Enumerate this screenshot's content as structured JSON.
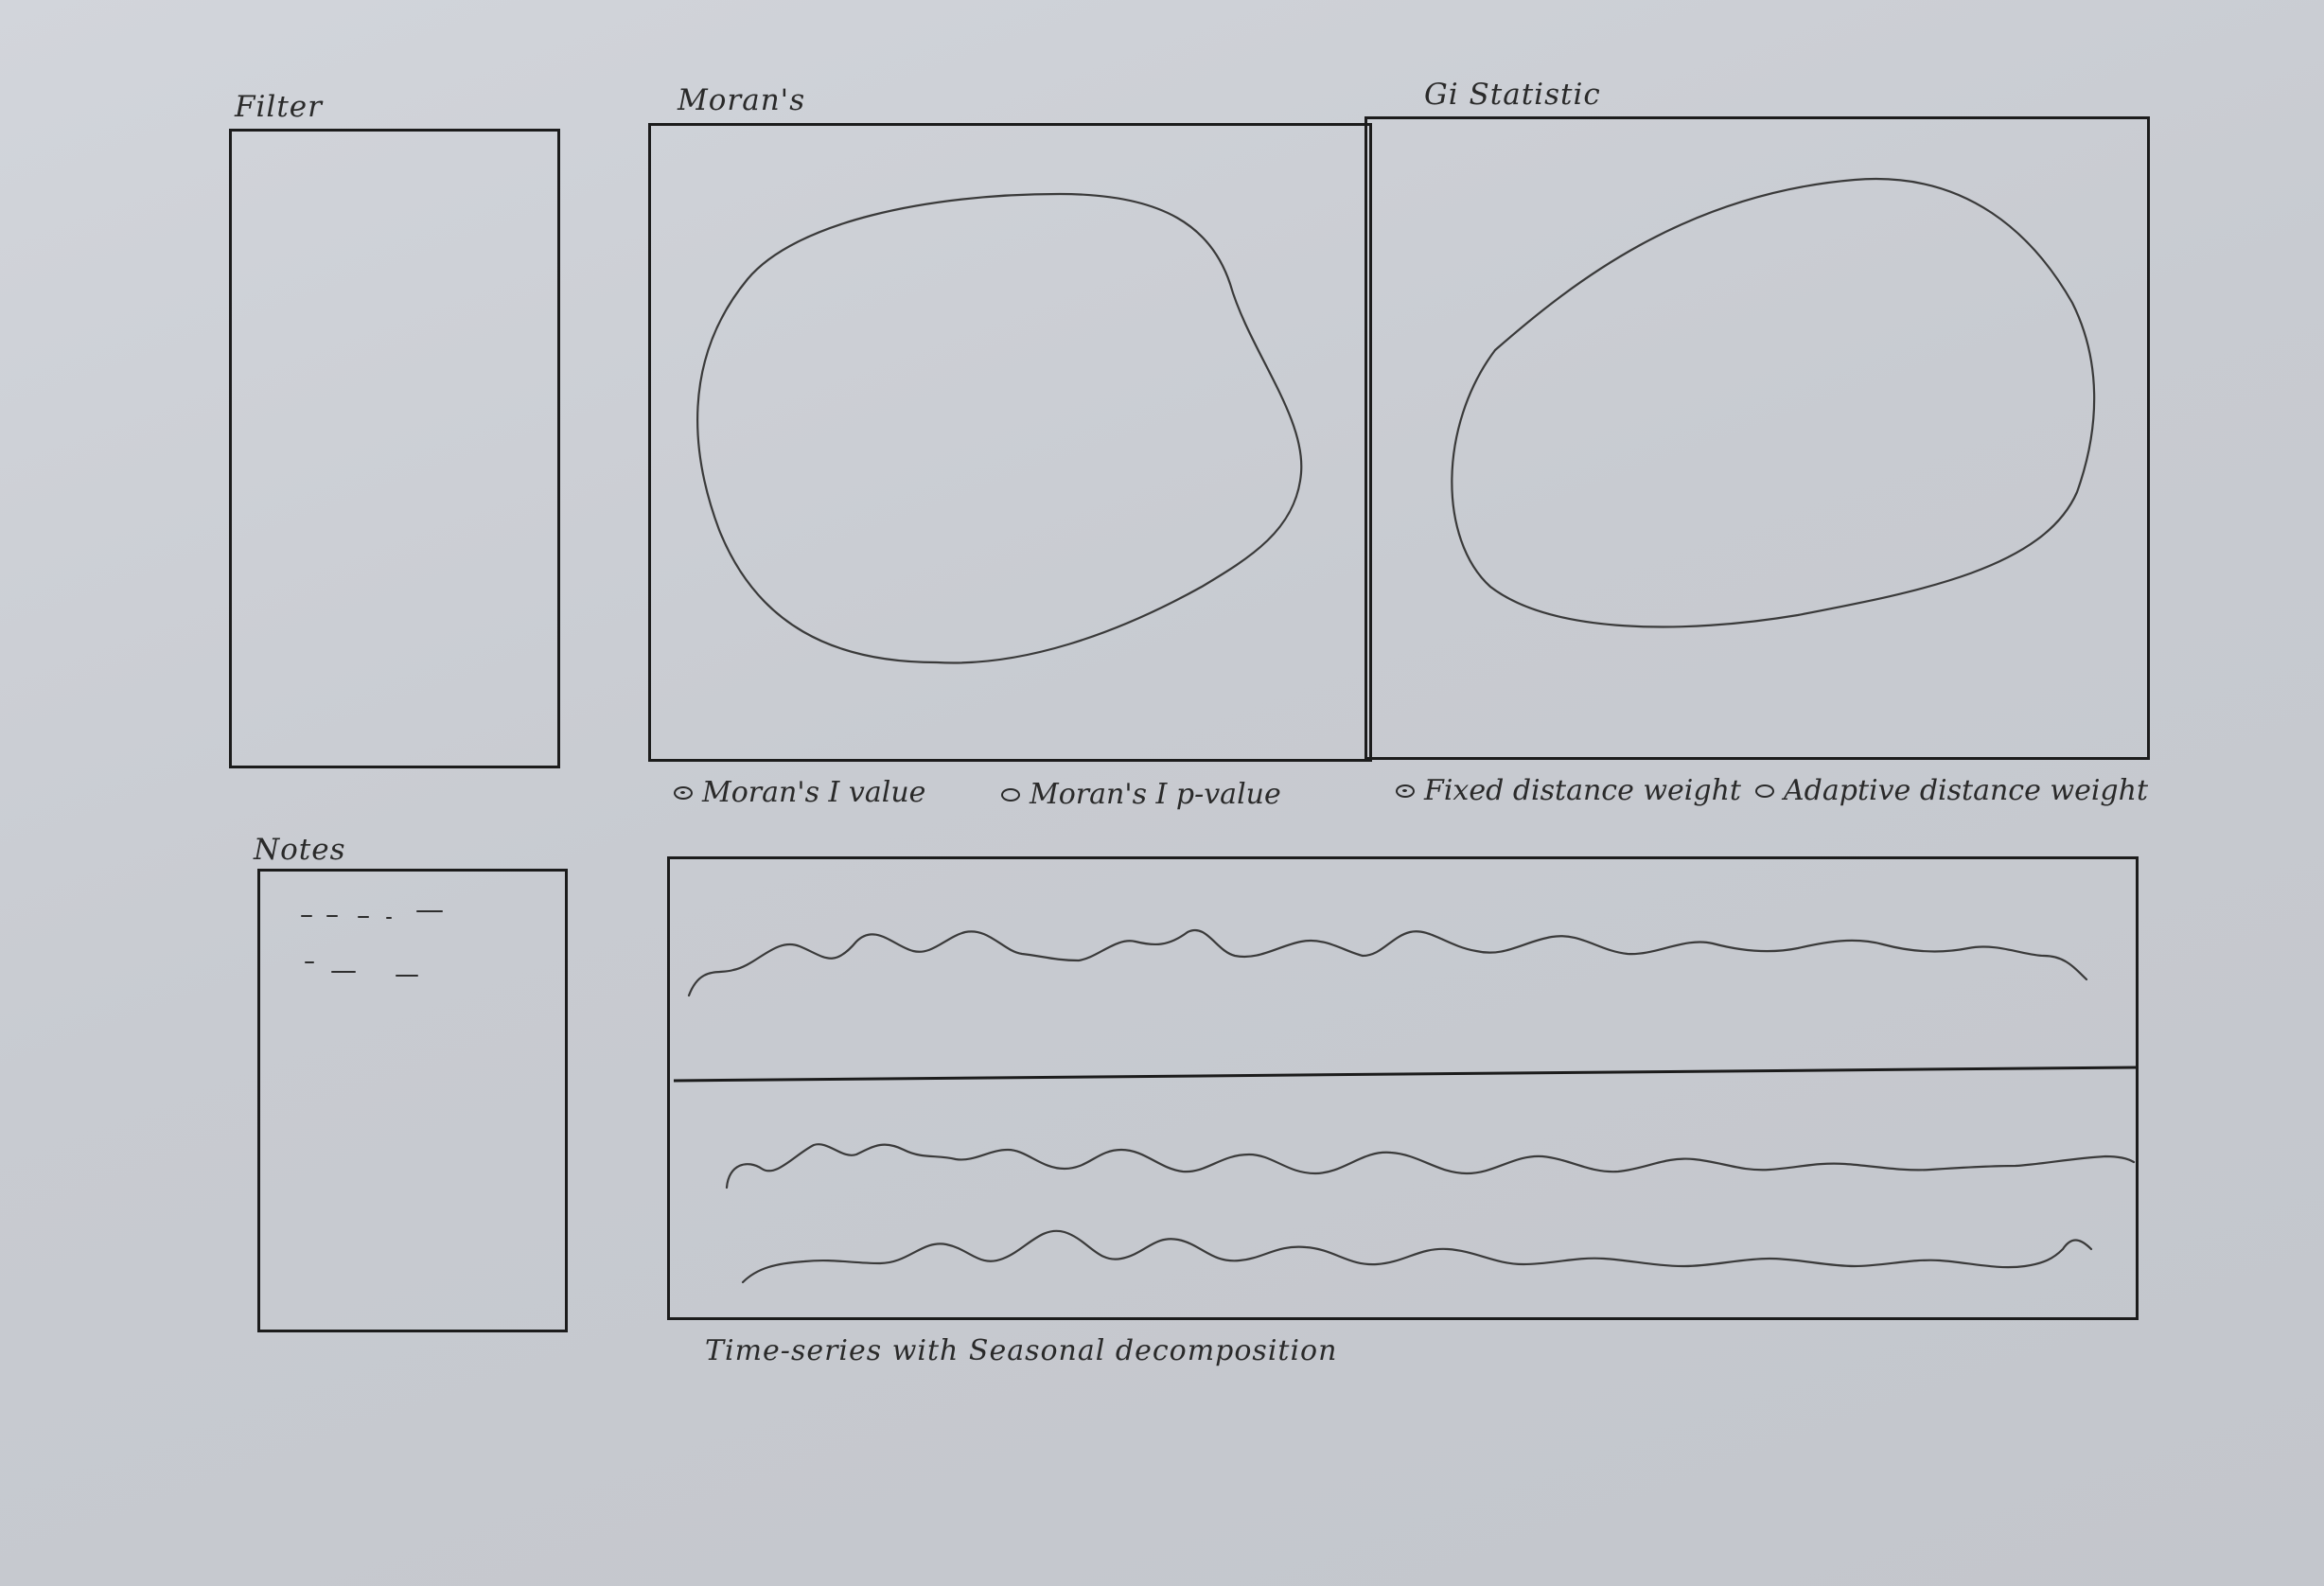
{
  "panels": {
    "filter": {
      "title": "Filter"
    },
    "notes": {
      "title": "Notes"
    },
    "morans": {
      "title": "Moran's"
    },
    "gi": {
      "title": "Gi Statistic"
    },
    "timeseries": {
      "caption": "Time-series with Seasonal decomposition"
    }
  },
  "morans_options": [
    {
      "label": "Moran's I value",
      "selected": true
    },
    {
      "label": "Moran's I p-value",
      "selected": false
    }
  ],
  "gi_options": [
    {
      "label": "Fixed distance weight",
      "selected": true
    },
    {
      "label": "Adaptive distance weight",
      "selected": false
    }
  ]
}
